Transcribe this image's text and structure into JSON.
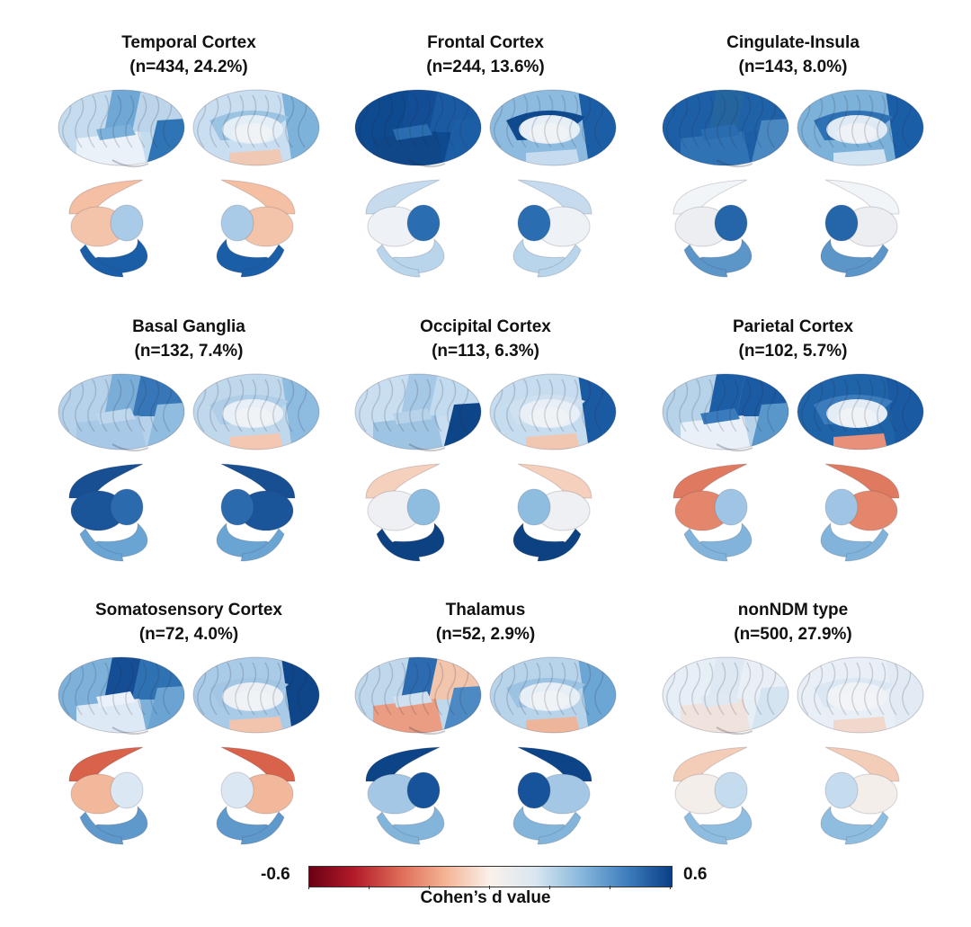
{
  "panels": [
    {
      "id": "temporal",
      "title": "Temporal Cortex",
      "subtitle": "(n=434, 24.2%)",
      "lat": [
        "#c5dcee",
        "#6fa8d5",
        "#bcd5ea",
        "#eaf1f8",
        "#2f75b5",
        "#7bb1da"
      ],
      "med": [
        "#c9def0",
        "#7db2da",
        "#e4eef7",
        "#f0f3f6",
        "#9bc3e2",
        "#f0c9b5"
      ],
      "sub": {
        "caudate": "#f4bfa3",
        "put": "#f3c4aa",
        "thal": "#a9cbe7",
        "hip": "#1a5ea8"
      }
    },
    {
      "id": "frontal",
      "title": "Frontal Cortex",
      "subtitle": "(n=244, 13.6%)",
      "lat": [
        "#0e4a8f",
        "#134d95",
        "#1a5aa3",
        "#0f4789",
        "#1c5ea6",
        "#2a6eb1"
      ],
      "med": [
        "#8dbbe0",
        "#1c5ea6",
        "#e6eef6",
        "#f0f3f6",
        "#0f4a8f",
        "#c6dbee"
      ],
      "sub": {
        "caudate": "#c6dbee",
        "put": "#eef1f5",
        "thal": "#2a6eb1",
        "hip": "#b9d5eb"
      }
    },
    {
      "id": "cingulate",
      "title": "Cingulate-Insula",
      "subtitle": "(n=143, 8.0%)",
      "lat": [
        "#1d5fa6",
        "#24649f",
        "#1f62a8",
        "#2f73b4",
        "#4a88c2",
        "#2a6cb0"
      ],
      "med": [
        "#7cb1d9",
        "#1b5ea8",
        "#dfeaf4",
        "#eef2f6",
        "#2f72b3",
        "#d2e3f1"
      ],
      "sub": {
        "caudate": "#f2f5f8",
        "put": "#eceef2",
        "thal": "#2565aa",
        "hip": "#5c95c8"
      }
    },
    {
      "id": "basal",
      "title": "Basal Ganglia",
      "subtitle": "(n=132, 7.4%)",
      "lat": [
        "#b6d2ea",
        "#7aaed8",
        "#3777b8",
        "#a7c8e6",
        "#90bcdf",
        "#bed7ec"
      ],
      "med": [
        "#c0d8ec",
        "#8ebbe0",
        "#e8eff7",
        "#f0f3f6",
        "#b0cee8",
        "#f3c7b2"
      ],
      "sub": {
        "caudate": "#184f93",
        "put": "#1a5499",
        "thal": "#2c6aae",
        "hip": "#6aa4d3"
      }
    },
    {
      "id": "occipital",
      "title": "Occipital Cortex",
      "subtitle": "(n=113, 6.3%)",
      "lat": [
        "#c9def0",
        "#a5c8e6",
        "#c3dbee",
        "#9ec4e3",
        "#0d4588",
        "#b7d3ea"
      ],
      "med": [
        "#c6dcef",
        "#1a5aa3",
        "#e8eff6",
        "#f0f3f6",
        "#cfe1f0",
        "#f2c7b2"
      ],
      "sub": {
        "caudate": "#f5d0bc",
        "put": "#eef0f3",
        "thal": "#8fbde0",
        "hip": "#0c4182"
      }
    },
    {
      "id": "parietal",
      "title": "Parietal Cortex",
      "subtitle": "(n=102, 5.7%)",
      "lat": [
        "#b7d3ea",
        "#1c5ea6",
        "#1a5ba4",
        "#e9f0f7",
        "#5996ca",
        "#3a7bbd"
      ],
      "med": [
        "#1f63a9",
        "#1a5aa3",
        "#e4edf6",
        "#f0f3f6",
        "#3c7cbc",
        "#e8907a"
      ],
      "sub": {
        "caudate": "#df7a60",
        "put": "#e4866b",
        "thal": "#a0c5e4",
        "hip": "#82b4db"
      }
    },
    {
      "id": "somato",
      "title": "Somatosensory Cortex",
      "subtitle": "(n=72, 4.0%)",
      "lat": [
        "#7eb1da",
        "#154e95",
        "#2f72b3",
        "#dde9f4",
        "#6ba4d3",
        "#eaf1f8"
      ],
      "med": [
        "#a9cbe7",
        "#0f4589",
        "#ecf0f5",
        "#f0f3f6",
        "#a2c6e4",
        "#f2c4ae"
      ],
      "sub": {
        "caudate": "#d9624a",
        "put": "#f1b89c",
        "thal": "#dbe8f4",
        "hip": "#5f98ca"
      }
    },
    {
      "id": "thalamus",
      "title": "Thalamus",
      "subtitle": "(n=52, 2.9%)",
      "lat": [
        "#c0d8ec",
        "#2c6bb0",
        "#f2c5ad",
        "#ea9d82",
        "#4d8ac4",
        "#cfe1f0"
      ],
      "med": [
        "#b8d4ea",
        "#6ca6d4",
        "#e6eef6",
        "#f0f3f6",
        "#9dc3e2",
        "#edb59a"
      ],
      "sub": {
        "caudate": "#0d4488",
        "put": "#a4c7e5",
        "thal": "#17539a",
        "hip": "#83b5db"
      }
    },
    {
      "id": "nonndm",
      "title": "nonNDM type",
      "subtitle": "(n=500, 27.9%)",
      "lat": [
        "#e6eef6",
        "#dde8f3",
        "#e9eff6",
        "#f0e2dc",
        "#d5e4f1",
        "#dfe9f3"
      ],
      "med": [
        "#e9eff6",
        "#e2ebf4",
        "#f0f3f6",
        "#f2f4f7",
        "#dbe7f3",
        "#f0d8cc"
      ],
      "sub": {
        "caudate": "#f4cdb9",
        "put": "#f3eeea",
        "thal": "#c5dbee",
        "hip": "#8fbde0"
      }
    }
  ],
  "colorbar": {
    "min_label": "-0.6",
    "max_label": "0.6",
    "title": "Cohen’s d value",
    "range": [
      -0.6,
      0.6
    ],
    "colors": [
      "#6a0014",
      "#b31b2a",
      "#dd6b56",
      "#f4b394",
      "#faf1ea",
      "#d8e6f1",
      "#88b8dc",
      "#3f7fbe",
      "#0a3f86"
    ]
  }
}
